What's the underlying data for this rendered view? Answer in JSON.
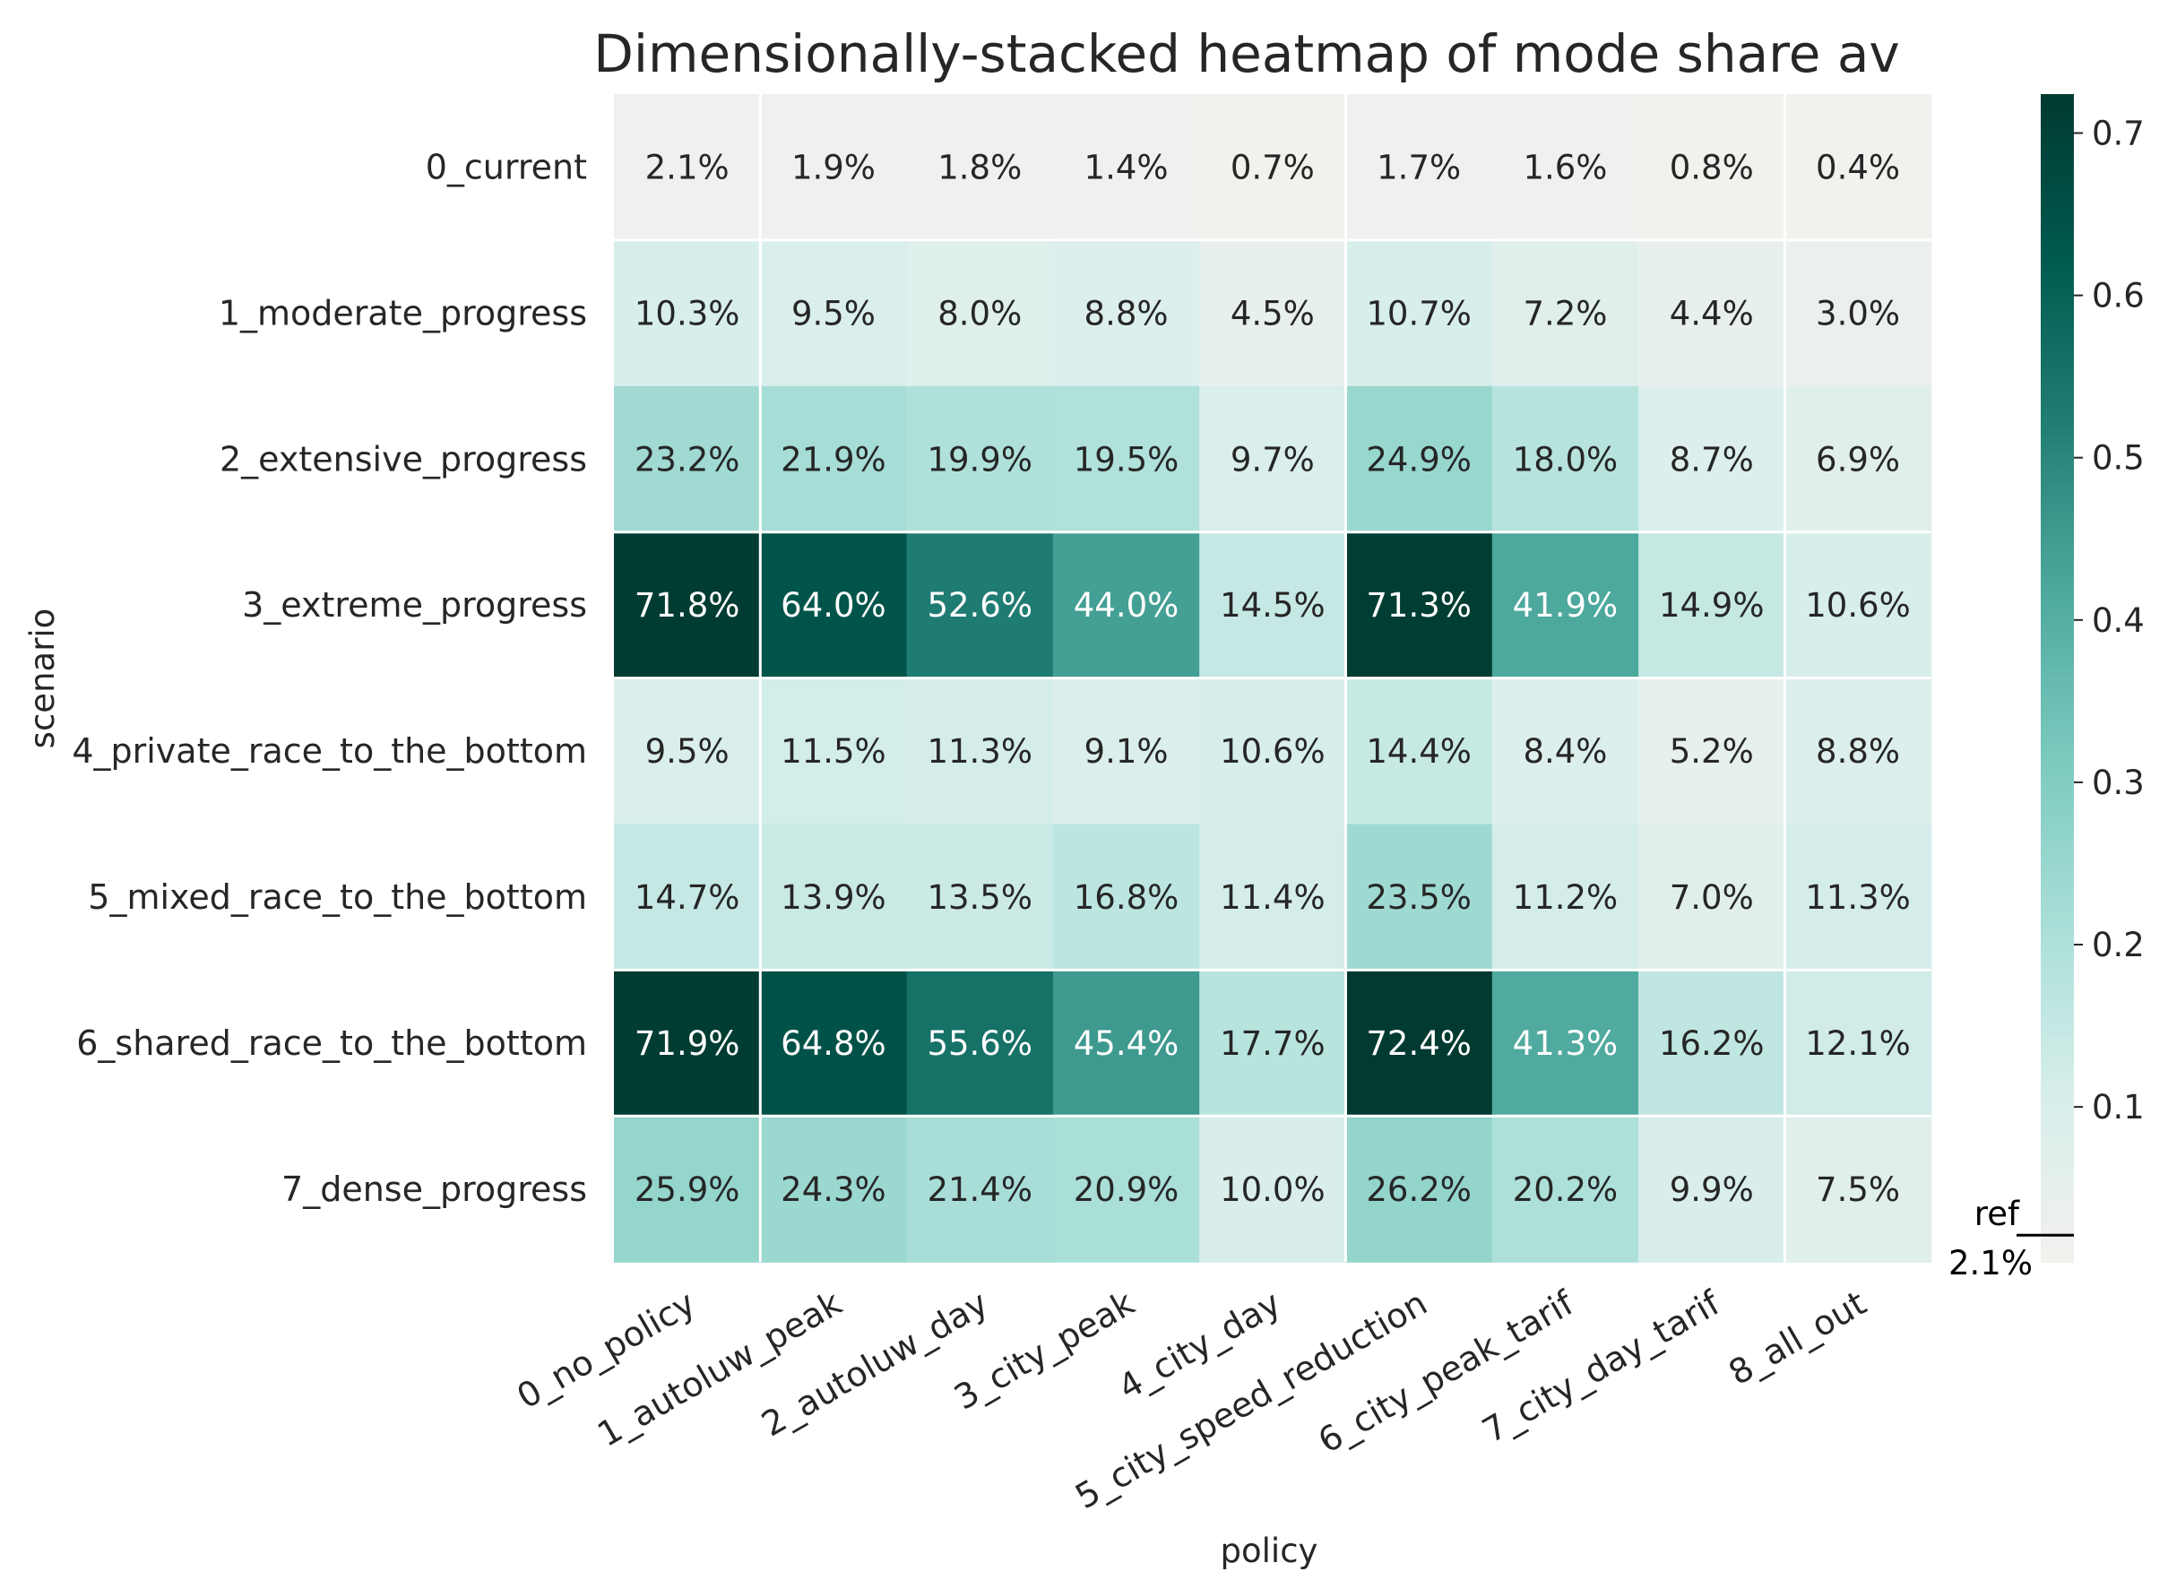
{
  "chart_data": {
    "type": "heatmap",
    "title": "Dimensionally-stacked heatmap of mode share av",
    "xlabel": "policy",
    "ylabel": "scenario",
    "columns": [
      "0_no_policy",
      "1_autoluw_peak",
      "2_autoluw_day",
      "3_city_peak",
      "4_city_day",
      "5_city_speed_reduction",
      "6_city_peak_tarif",
      "7_city_day_tarif",
      "8_all_out"
    ],
    "rows": [
      "0_current",
      "1_moderate_progress",
      "2_extensive_progress",
      "3_extreme_progress",
      "4_private_race_to_the_bottom",
      "5_mixed_race_to_the_bottom",
      "6_shared_race_to_the_bottom",
      "7_dense_progress"
    ],
    "values": [
      [
        0.021,
        0.019,
        0.018,
        0.014,
        0.007,
        0.017,
        0.016,
        0.008,
        0.004
      ],
      [
        0.103,
        0.095,
        0.08,
        0.088,
        0.045,
        0.107,
        0.072,
        0.044,
        0.03
      ],
      [
        0.232,
        0.219,
        0.199,
        0.195,
        0.097,
        0.249,
        0.18,
        0.087,
        0.069
      ],
      [
        0.718,
        0.64,
        0.526,
        0.44,
        0.145,
        0.713,
        0.419,
        0.149,
        0.106
      ],
      [
        0.095,
        0.115,
        0.113,
        0.091,
        0.106,
        0.144,
        0.084,
        0.052,
        0.088
      ],
      [
        0.147,
        0.139,
        0.135,
        0.168,
        0.114,
        0.235,
        0.112,
        0.07,
        0.113
      ],
      [
        0.719,
        0.648,
        0.556,
        0.454,
        0.177,
        0.724,
        0.413,
        0.162,
        0.121
      ],
      [
        0.259,
        0.243,
        0.214,
        0.209,
        0.1,
        0.262,
        0.202,
        0.099,
        0.075
      ]
    ],
    "labels": [
      [
        "2.1%",
        "1.9%",
        "1.8%",
        "1.4%",
        "0.7%",
        "1.7%",
        "1.6%",
        "0.8%",
        "0.4%"
      ],
      [
        "10.3%",
        "9.5%",
        "8.0%",
        "8.8%",
        "4.5%",
        "10.7%",
        "7.2%",
        "4.4%",
        "3.0%"
      ],
      [
        "23.2%",
        "21.9%",
        "19.9%",
        "19.5%",
        "9.7%",
        "24.9%",
        "18.0%",
        "8.7%",
        "6.9%"
      ],
      [
        "71.8%",
        "64.0%",
        "52.6%",
        "44.0%",
        "14.5%",
        "71.3%",
        "41.9%",
        "14.9%",
        "10.6%"
      ],
      [
        "9.5%",
        "11.5%",
        "11.3%",
        "9.1%",
        "10.6%",
        "14.4%",
        "8.4%",
        "5.2%",
        "8.8%"
      ],
      [
        "14.7%",
        "13.9%",
        "13.5%",
        "16.8%",
        "11.4%",
        "23.5%",
        "11.2%",
        "7.0%",
        "11.3%"
      ],
      [
        "71.9%",
        "64.8%",
        "55.6%",
        "45.4%",
        "17.7%",
        "72.4%",
        "41.3%",
        "16.2%",
        "12.1%"
      ],
      [
        "25.9%",
        "24.3%",
        "21.4%",
        "20.9%",
        "10.0%",
        "26.2%",
        "20.2%",
        "9.9%",
        "7.5%"
      ]
    ],
    "colorbar": {
      "range": [
        0.004,
        0.724
      ],
      "ticks": [
        0.1,
        0.2,
        0.3,
        0.4,
        0.5,
        0.6,
        0.7
      ],
      "tick_labels": [
        "0.1",
        "0.2",
        "0.3",
        "0.4",
        "0.5",
        "0.6",
        "0.7"
      ],
      "colors": [
        "#f3f1ee",
        "#d7eeeb",
        "#aadfd8",
        "#7ccabf",
        "#4fa99e",
        "#227f75",
        "#005a50",
        "#003a30"
      ],
      "reference": {
        "label": "ref",
        "value": 0.021,
        "value_label": "2.1%"
      }
    },
    "separators": {
      "vertical_after_columns": [
        0,
        4,
        7
      ],
      "horizontal_after_rows": [
        0,
        2,
        3,
        5,
        6
      ]
    },
    "light_text_color": "#ffffff",
    "dark_text_color": "#262626"
  }
}
